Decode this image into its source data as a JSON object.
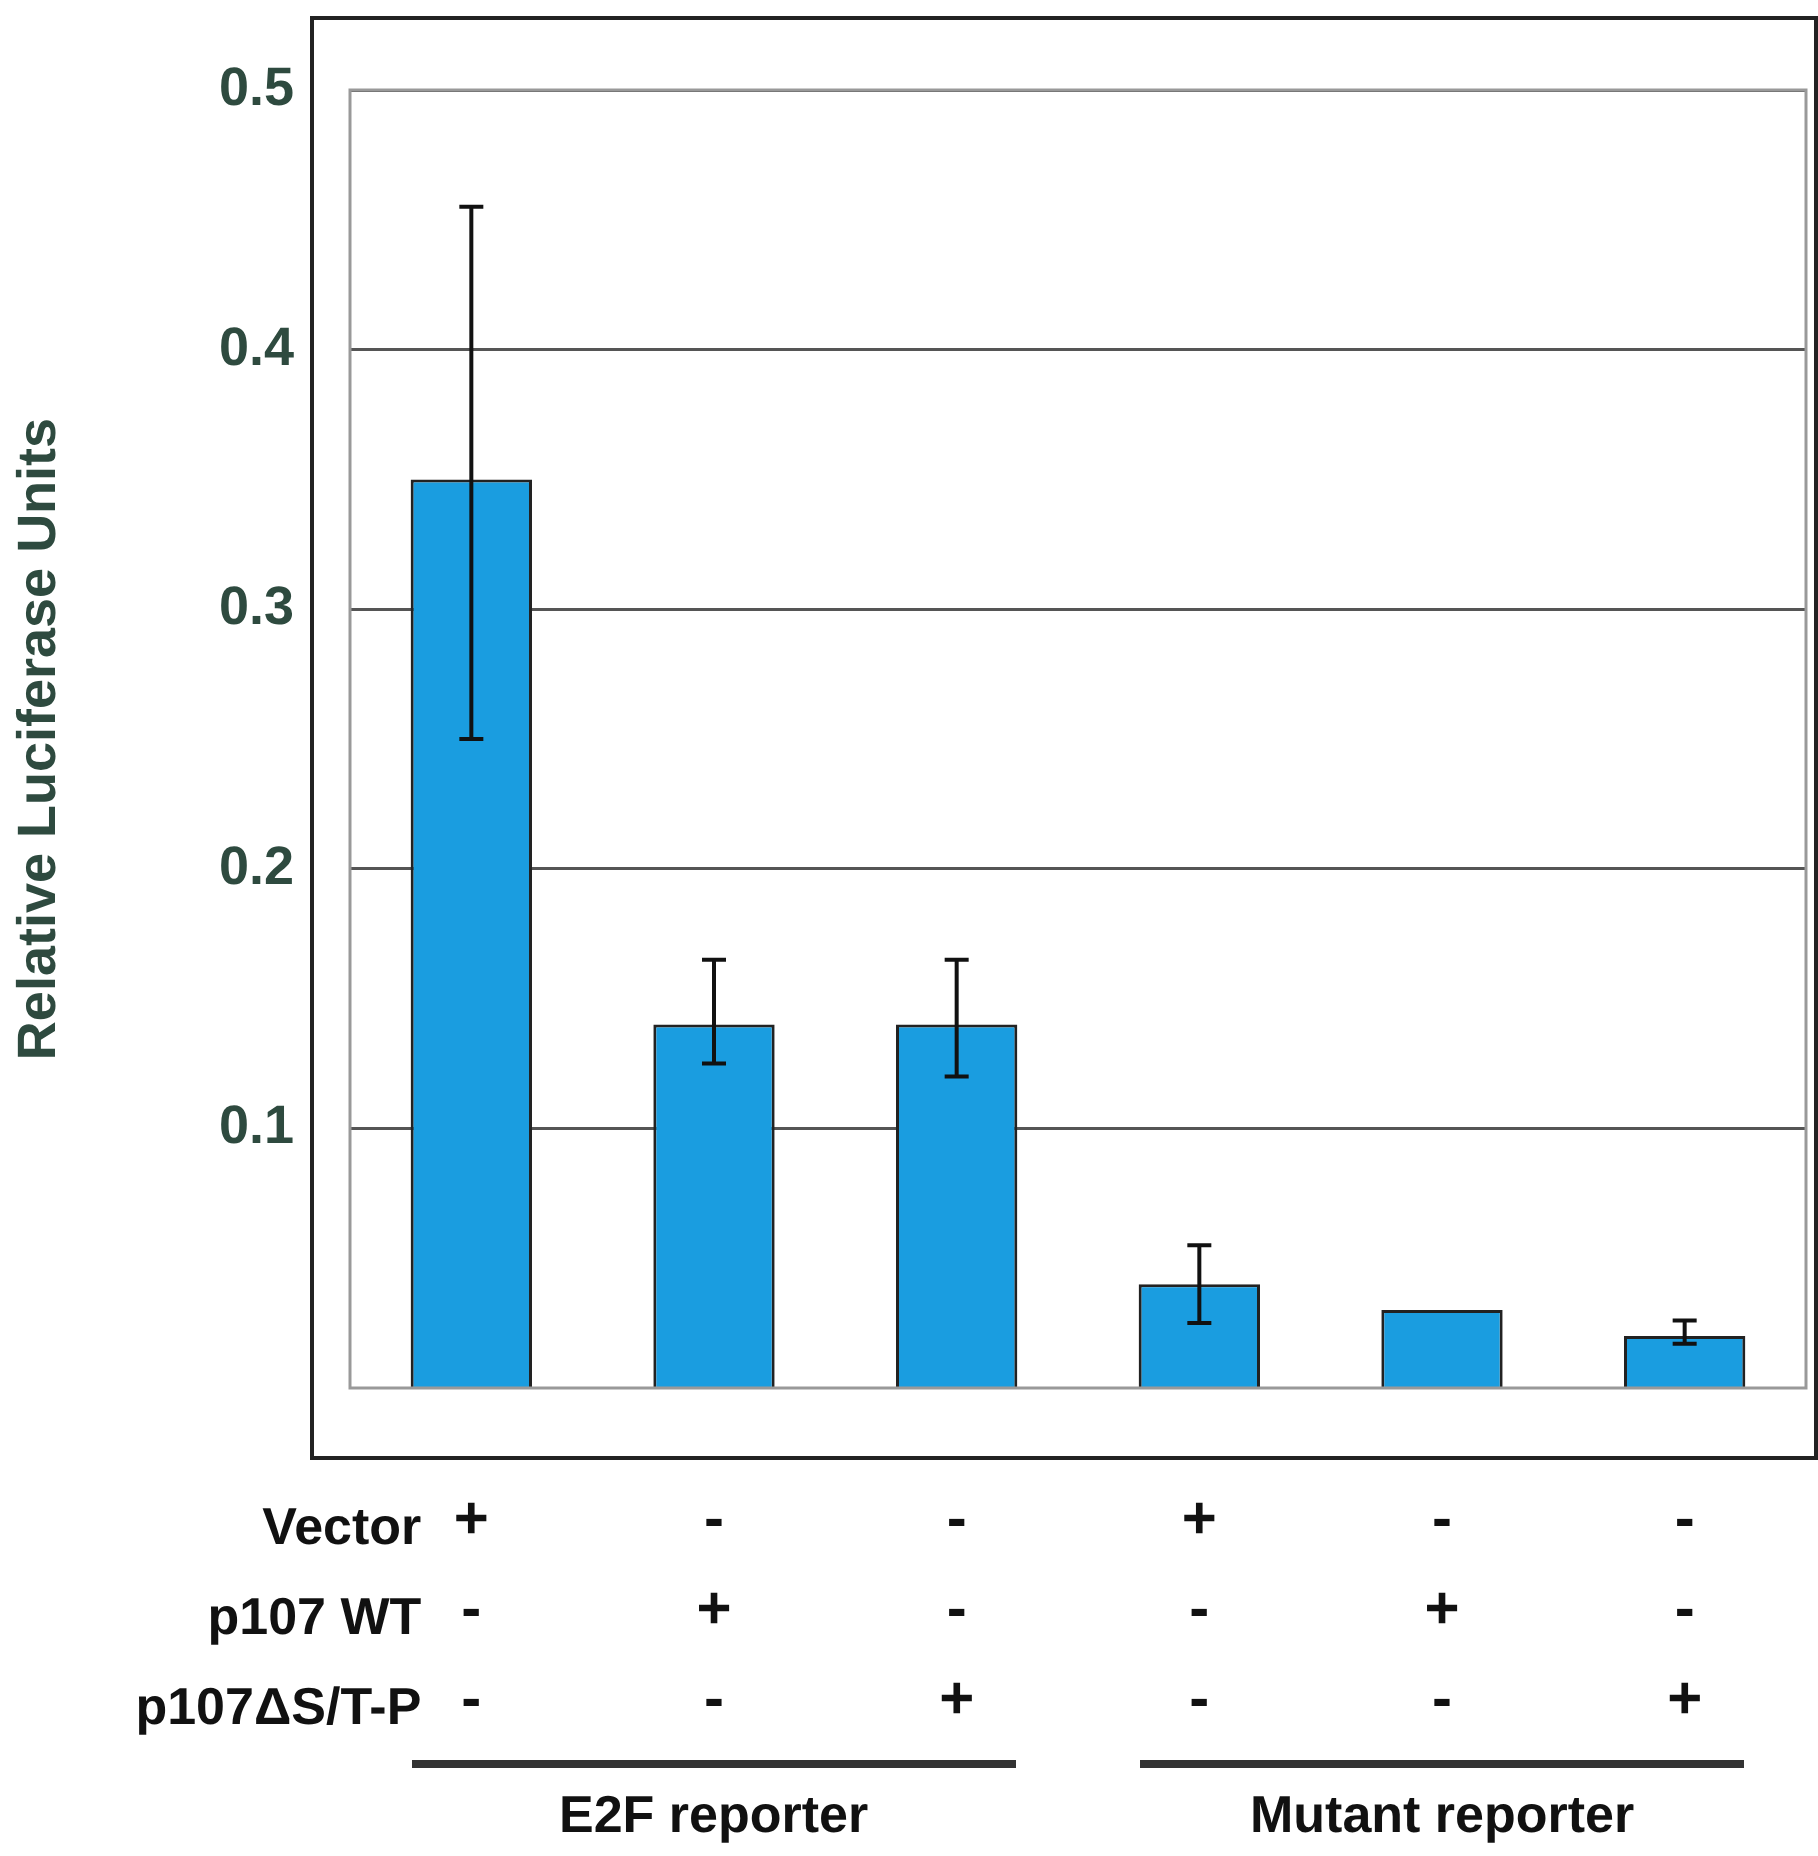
{
  "chart_data": {
    "type": "bar",
    "ylabel": "Relative Luciferase Units",
    "categories": [
      "+\n-\n-",
      "-\n+\n-",
      "-\n-\n+",
      "+\n-\n-",
      "-\n+\n-",
      "-\n-\n+"
    ],
    "values": [
      0.35,
      0.14,
      0.14,
      0.04,
      0.03,
      0.02
    ],
    "errors": [
      [
        0.25,
        0.455
      ],
      [
        0.125,
        0.165
      ],
      [
        0.12,
        0.165
      ],
      [
        0.025,
        0.055
      ],
      null,
      [
        0.017,
        0.026
      ]
    ],
    "color": "#1a9de0",
    "ylim": [
      0,
      0.5
    ],
    "yticks": [
      0.1,
      0.2,
      0.3,
      0.4,
      0.5
    ],
    "grid": "y",
    "legend": false,
    "annotations": [
      "Vector",
      "p107 WT",
      "p107ΔS/T-P",
      "E2F reporter",
      "Mutant reporter"
    ]
  }
}
